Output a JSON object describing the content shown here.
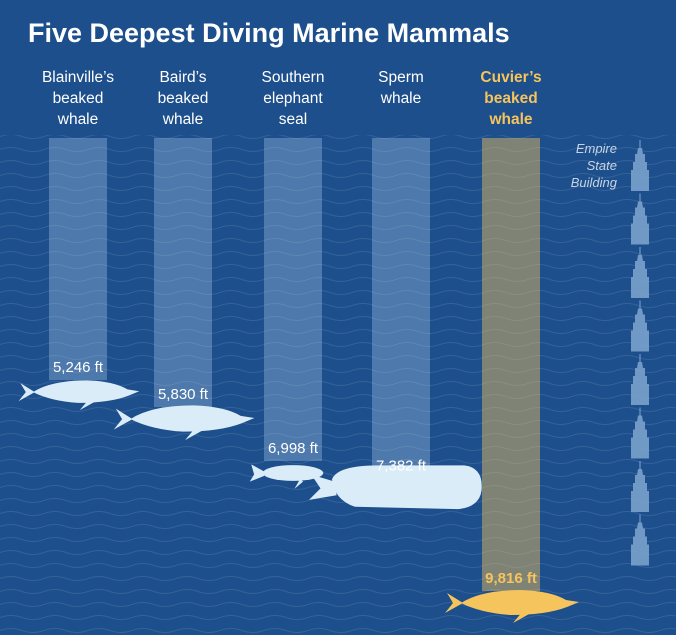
{
  "title": "Five Deepest Diving Marine Mammals",
  "colors": {
    "background": "#1d4f8c",
    "column": "#b7d2ee",
    "animal": "#d9ecf8",
    "highlight": "#f6c45c",
    "text": "#ffffff",
    "building": "#7fa6cf"
  },
  "chart_data": {
    "type": "bar",
    "orientation": "vertical-downward",
    "unit": "ft",
    "categories": [
      "Blainville's beaked whale",
      "Baird's beaked whale",
      "Southern elephant seal",
      "Sperm whale",
      "Cuvier's beaked whale"
    ],
    "labels": [
      [
        "Blainville’s",
        "beaked",
        "whale"
      ],
      [
        "Baird’s",
        "beaked",
        "whale"
      ],
      [
        "Southern",
        "elephant",
        "seal"
      ],
      [
        "Sperm",
        "whale"
      ],
      [
        "Cuvier’s",
        "beaked",
        "whale"
      ]
    ],
    "values": [
      5246,
      5830,
      6998,
      7382,
      9816
    ],
    "value_labels": [
      "5,246 ft",
      "5,830 ft",
      "6,998 ft",
      "7,382 ft",
      "9,816 ft"
    ],
    "highlight_index": 4,
    "ylim": [
      0,
      10400
    ],
    "reference": {
      "label": [
        "Empire",
        "State",
        "Building"
      ],
      "count": 8
    }
  }
}
